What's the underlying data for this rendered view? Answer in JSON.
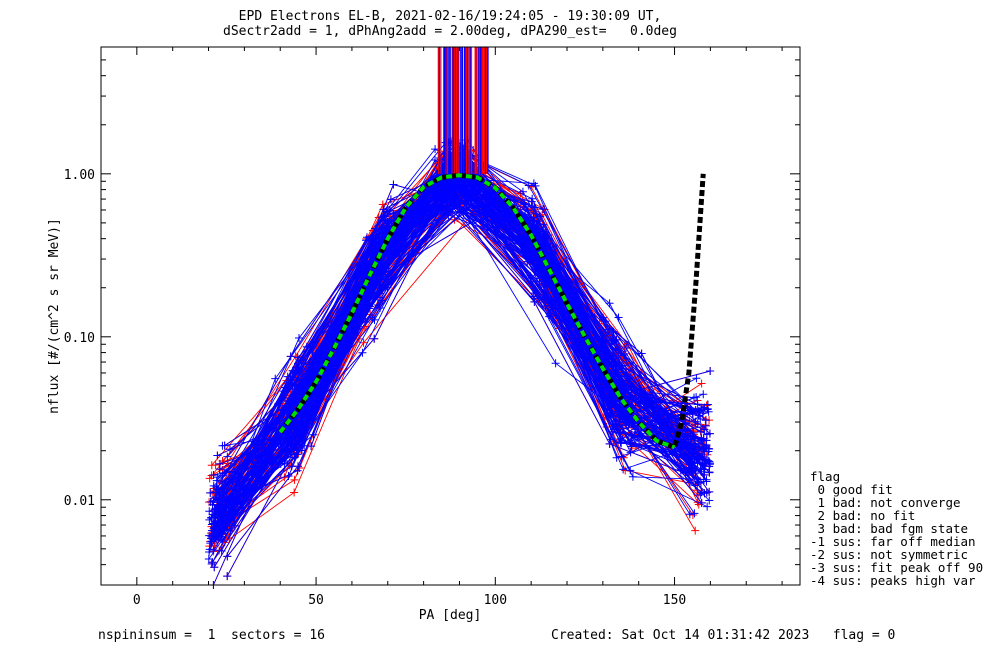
{
  "header": {
    "title_line1": "EPD Electrons EL-B, 2021-02-16/19:24:05 - 19:30:09 UT,",
    "title_line2": "dSectr2add = 1, dPhAng2add = 2.00deg, dPA290_est=   0.0deg"
  },
  "legend": {
    "title": "flag",
    "items": [
      " 0 good fit",
      " 1 bad: not converge",
      " 2 bad: no fit",
      " 3 bad: bad fgm state",
      "-1 sus: far off median",
      "-2 sus: not symmetric",
      "-3 sus: fit peak off 90",
      "-4 sus: peaks high var"
    ]
  },
  "footer": {
    "left": "nspininsum =  1  sectors = 16",
    "right": "Created: Sat Oct 14 01:31:42 2023   flag = 0"
  },
  "colors": {
    "series_a": "#0000ff",
    "series_b": "#ff0000",
    "fit": "#00dd00",
    "median": "#000000"
  },
  "chart_data": {
    "type": "line",
    "xlabel": "PA [deg]",
    "ylabel": "nflux [#/(cm^2 s sr MeV)]",
    "xlim": [
      -10,
      185
    ],
    "ylim": [
      0.003,
      6.0
    ],
    "yscale": "log",
    "xticks": [
      0,
      50,
      100,
      150
    ],
    "xtick_labels": [
      "0",
      "50",
      "100",
      "150"
    ],
    "yticks": [
      0.01,
      0.1,
      1.0
    ],
    "ytick_labels": [
      "0.01",
      "0.10",
      "1.00"
    ],
    "fit_curve": {
      "x": [
        40,
        45,
        50,
        55,
        60,
        65,
        70,
        75,
        80,
        85,
        90,
        95,
        100,
        105,
        110,
        115,
        120,
        125,
        130,
        135,
        140,
        145,
        150
      ],
      "y": [
        0.026,
        0.036,
        0.053,
        0.085,
        0.14,
        0.24,
        0.4,
        0.62,
        0.83,
        0.95,
        0.98,
        0.95,
        0.82,
        0.62,
        0.42,
        0.26,
        0.16,
        0.1,
        0.064,
        0.042,
        0.03,
        0.023,
        0.021
      ]
    },
    "median_curve": {
      "x": [
        40,
        45,
        50,
        55,
        60,
        65,
        70,
        75,
        80,
        85,
        90,
        95,
        100,
        105,
        110,
        115,
        120,
        125,
        130,
        135,
        140,
        145,
        150,
        152,
        154,
        156,
        158
      ],
      "y": [
        0.026,
        0.036,
        0.053,
        0.085,
        0.14,
        0.24,
        0.4,
        0.62,
        0.83,
        0.95,
        0.98,
        0.95,
        0.82,
        0.62,
        0.42,
        0.26,
        0.16,
        0.1,
        0.064,
        0.042,
        0.03,
        0.023,
        0.021,
        0.03,
        0.06,
        0.22,
        1.0
      ]
    },
    "grid": false
  }
}
